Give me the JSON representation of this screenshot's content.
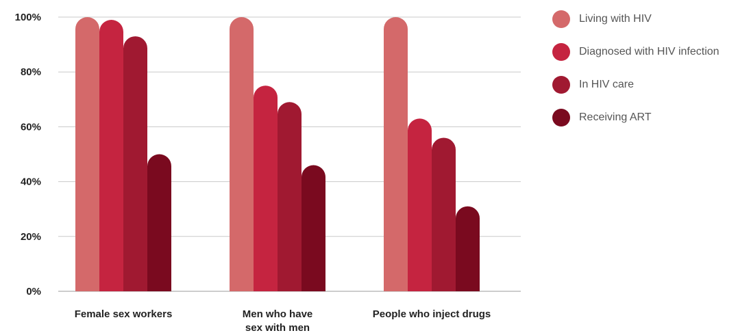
{
  "chart_data": {
    "type": "bar",
    "categories": [
      [
        "Female sex workers"
      ],
      [
        "Men who have",
        "sex with men"
      ],
      [
        "People who inject drugs"
      ]
    ],
    "series": [
      {
        "name": "Living with HIV",
        "color": "#d4696a",
        "values": [
          100,
          100,
          100
        ]
      },
      {
        "name": "Diagnosed with HIV infection",
        "color": "#c52440",
        "values": [
          99,
          75,
          63
        ]
      },
      {
        "name": "In HIV care",
        "color": "#a01931",
        "values": [
          93,
          69,
          56
        ]
      },
      {
        "name": "Receiving ART",
        "color": "#7a0a1f",
        "values": [
          50,
          46,
          31
        ]
      }
    ],
    "y_ticks": [
      "0%",
      "20%",
      "40%",
      "60%",
      "80%",
      "100%"
    ],
    "ylim": [
      0,
      100
    ],
    "grid": true,
    "legend_position": "right",
    "title": "",
    "xlabel": "",
    "ylabel": ""
  }
}
